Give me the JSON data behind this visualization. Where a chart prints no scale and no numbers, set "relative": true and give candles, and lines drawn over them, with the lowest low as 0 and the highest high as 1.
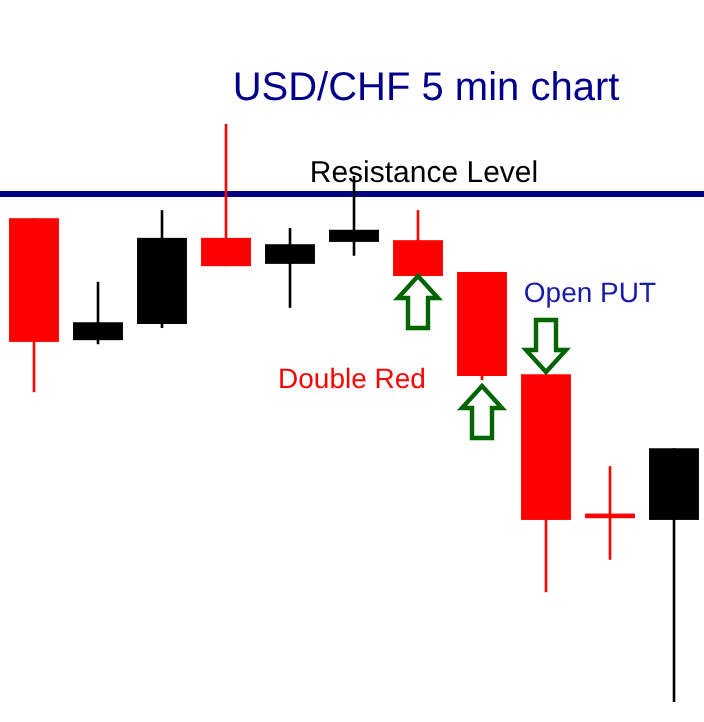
{
  "chart_data": {
    "type": "candlestick",
    "title": "USD/CHF 5 min chart",
    "relative": true,
    "categories": [
      null,
      null,
      null,
      null,
      null,
      null,
      null,
      null,
      null,
      null,
      null
    ],
    "ohlc": [
      [
        0.837,
        0.837,
        0.536,
        0.623
      ],
      [
        0.626,
        0.727,
        0.619,
        0.657
      ],
      [
        0.654,
        0.851,
        0.647,
        0.803
      ],
      [
        0.803,
        1,
        0.754,
        0.754
      ],
      [
        0.758,
        0.82,
        0.682,
        0.792
      ],
      [
        0.796,
        0.91,
        0.772,
        0.817
      ],
      [
        0.799,
        0.851,
        0.737,
        0.737
      ],
      [
        0.744,
        0.744,
        0.557,
        0.564
      ],
      [
        0.567,
        0.567,
        0.19,
        0.315
      ],
      [
        0.326,
        0.408,
        0.246,
        0.318
      ],
      [
        0.315,
        0.439,
        0,
        0.439
      ]
    ],
    "colors": [
      "#ff0000",
      "#000000",
      "#000000",
      "#ff0000",
      "#000000",
      "#000000",
      "#ff0000",
      "#ff0000",
      "#ff0000",
      "#ff0000",
      "#000000"
    ],
    "ref_lines": [
      {
        "axis": "y",
        "value": 0.879,
        "label": "Resistance Level",
        "color": "#000080"
      }
    ],
    "annotations": [
      "Double Red",
      "Open PUT"
    ]
  }
}
